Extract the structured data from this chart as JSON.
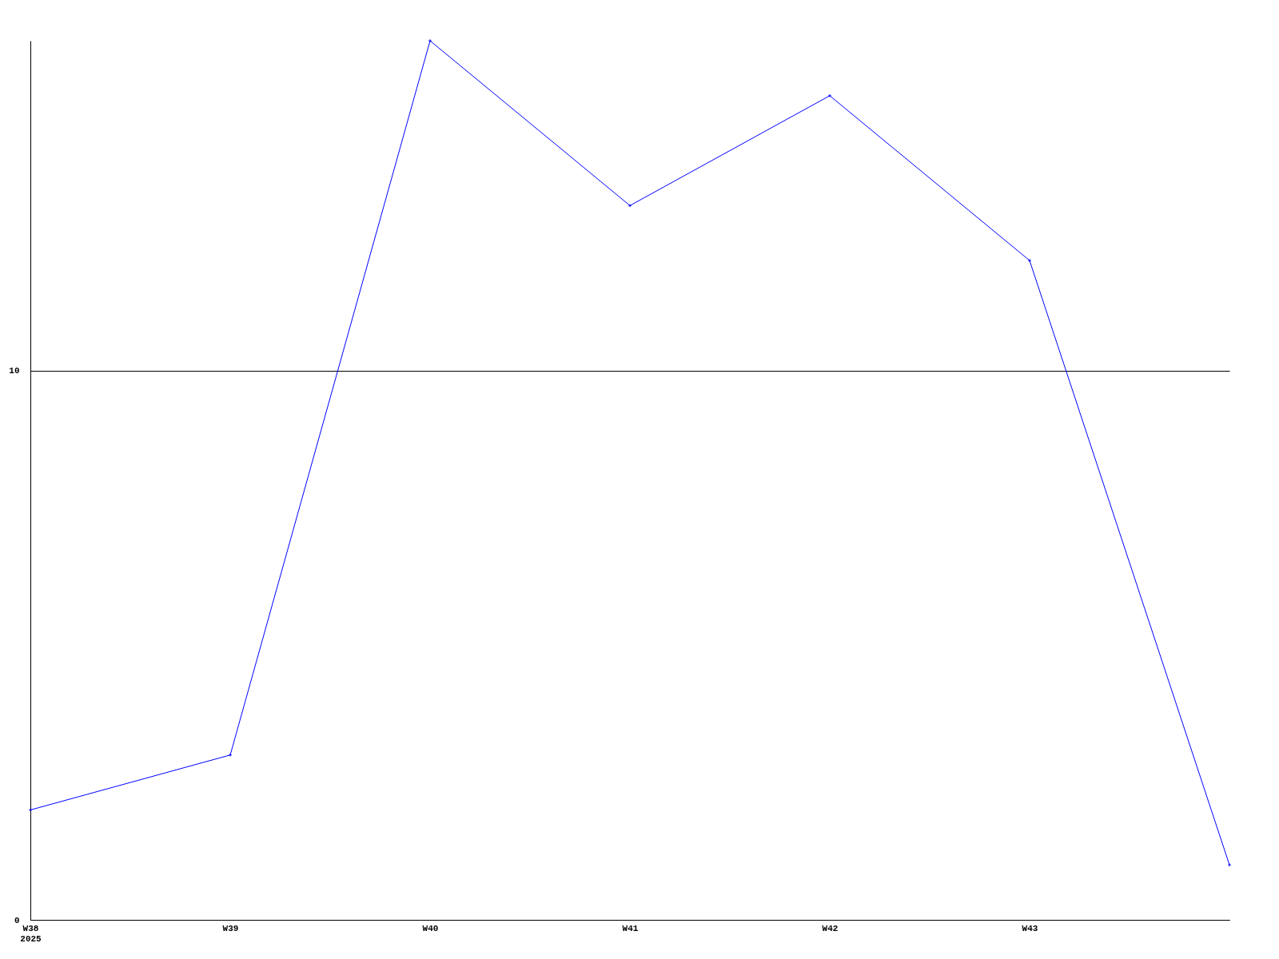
{
  "chart_data": {
    "type": "line",
    "categories": [
      "W38\n2025",
      "W39",
      "W40",
      "W41",
      "W42",
      "W43",
      null
    ],
    "series": [
      {
        "color": "#0000ff",
        "values": [
          2,
          3,
          16,
          13,
          15,
          12,
          1
        ]
      }
    ],
    "ylim": [
      0,
      16
    ],
    "yticks": [
      0,
      10
    ],
    "grid": "y",
    "marker": "diamond",
    "line_style": "solid",
    "legend": false
  }
}
